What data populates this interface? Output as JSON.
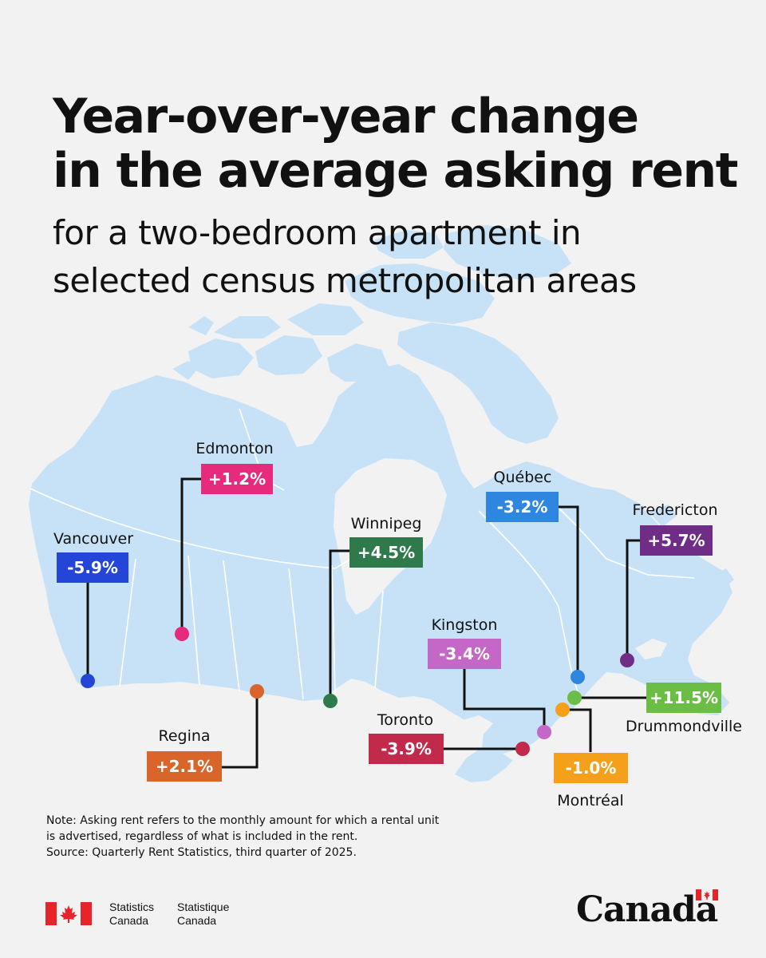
{
  "title": {
    "line1": "Year-over-year change",
    "line2": "in the average asking rent",
    "sub1": "for a two-bedroom apartment in",
    "sub2": "selected census metropolitan areas"
  },
  "colors": {
    "background": "#f2f2f2",
    "land": "#c7e2f7",
    "boundary": "#ffffff",
    "leader": "#111111"
  },
  "cities": {
    "vancouver": {
      "name": "Vancouver",
      "change": "-5.9%",
      "color": "#2446d8"
    },
    "edmonton": {
      "name": "Edmonton",
      "change": "+1.2%",
      "color": "#e62a7c"
    },
    "regina": {
      "name": "Regina",
      "change": "+2.1%",
      "color": "#d9652b"
    },
    "winnipeg": {
      "name": "Winnipeg",
      "change": "+4.5%",
      "color": "#2f7a4b"
    },
    "kingston": {
      "name": "Kingston",
      "change": "-3.4%",
      "color": "#c567c6"
    },
    "toronto": {
      "name": "Toronto",
      "change": "-3.9%",
      "color": "#c22a4c"
    },
    "quebec": {
      "name": "Québec",
      "change": "-3.2%",
      "color": "#2f86e0"
    },
    "fredericton": {
      "name": "Fredericton",
      "change": "+5.7%",
      "color": "#6f2d87"
    },
    "drummondville": {
      "name": "Drummondville",
      "change": "+11.5%",
      "color": "#6cbd45"
    },
    "montreal": {
      "name": "Montréal",
      "change": "-1.0%",
      "color": "#f5a01a"
    }
  },
  "note": {
    "line1": "Note: Asking rent refers to the monthly amount for which a rental unit",
    "line2": "is advertised, regardless of what is included in the rent.",
    "line3": "Source: Quarterly Rent Statistics, third quarter of 2025."
  },
  "footer": {
    "org_en_1": "Statistics",
    "org_en_2": "Canada",
    "org_fr_1": "Statistique",
    "org_fr_2": "Canada",
    "wordmark": "Canada"
  }
}
